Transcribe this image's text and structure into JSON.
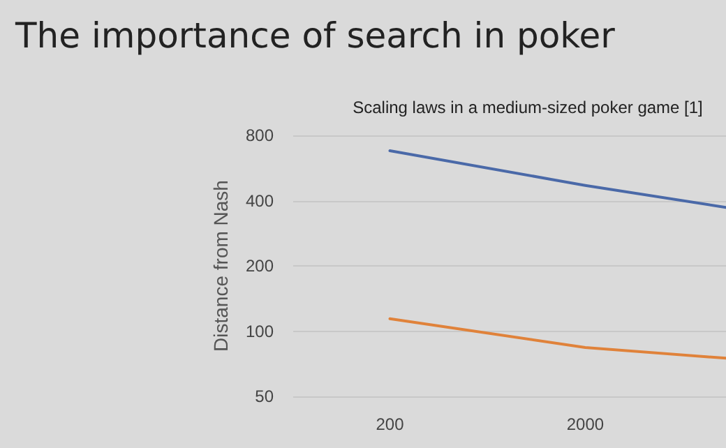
{
  "chart_data": {
    "type": "line",
    "title": "The importance of search in poker",
    "subtitle": "Scaling laws in a medium-sized poker game [1]",
    "ylabel": "Distance from Nash",
    "x": [
      200,
      2000,
      10500
    ],
    "series": [
      {
        "color": "#4a69a8",
        "values": [
          680,
          470,
          372
        ]
      },
      {
        "color": "#e0823a",
        "values": [
          114,
          84,
          75
        ]
      }
    ],
    "log": "xy",
    "xlim": [
      64,
      10500
    ],
    "xticks": [
      200,
      2000
    ],
    "ylim": [
      50,
      800
    ],
    "yticks": [
      50,
      100,
      200,
      400,
      800
    ],
    "grid": "y",
    "marker": "none",
    "line_style": "solid"
  }
}
